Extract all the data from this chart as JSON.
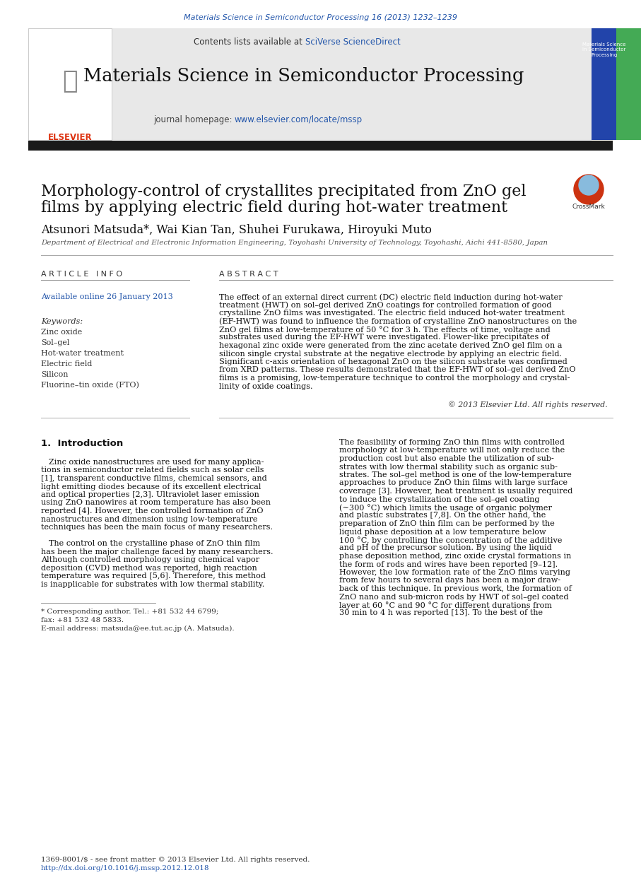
{
  "journal_ref": "Materials Science in Semiconductor Processing 16 (2013) 1232–1239",
  "sciverse_text": "SciVerse ScienceDirect",
  "journal_title": "Materials Science in Semiconductor Processing",
  "journal_homepage_url": "www.elsevier.com/locate/mssp",
  "article_title_line1": "Morphology-control of crystallites precipitated from ZnO gel",
  "article_title_line2": "films by applying electric field during hot-water treatment",
  "authors": "Atsunori Matsuda*, Wai Kian Tan, Shuhei Furukawa, Hiroyuki Muto",
  "affiliation": "Department of Electrical and Electronic Information Engineering, Toyohashi University of Technology, Toyohashi, Aichi 441-8580, Japan",
  "article_info_header": "A R T I C L E   I N F O",
  "abstract_header": "A B S T R A C T",
  "available_online": "Available online 26 January 2013",
  "keywords_label": "Keywords:",
  "keywords": [
    "Zinc oxide",
    "Sol–gel",
    "Hot-water treatment",
    "Electric field",
    "Silicon",
    "Fluorine–tin oxide (FTO)"
  ],
  "abstract_lines": [
    "The effect of an external direct current (DC) electric field induction during hot-water",
    "treatment (HWT) on sol–gel derived ZnO coatings for controlled formation of good",
    "crystalline ZnO films was investigated. The electric field induced hot-water treatment",
    "(EF-HWT) was found to influence the formation of crystalline ZnO nanostructures on the",
    "ZnO gel films at low-temperature of 50 °C for 3 h. The effects of time, voltage and",
    "substrates used during the EF-HWT were investigated. Flower-like precipitates of",
    "hexagonal zinc oxide were generated from the zinc acetate derived ZnO gel film on a",
    "silicon single crystal substrate at the negative electrode by applying an electric field.",
    "Significant c-axis orientation of hexagonal ZnO on the silicon substrate was confirmed",
    "from XRD patterns. These results demonstrated that the EF-HWT of sol–gel derived ZnO",
    "films is a promising, low-temperature technique to control the morphology and crystal-",
    "linity of oxide coatings."
  ],
  "copyright_text": "© 2013 Elsevier Ltd. All rights reserved.",
  "section1_title": "1.  Introduction",
  "intro_col1_lines": [
    "   Zinc oxide nanostructures are used for many applica-",
    "tions in semiconductor related fields such as solar cells",
    "[1], transparent conductive films, chemical sensors, and",
    "light emitting diodes because of its excellent electrical",
    "and optical properties [2,3]. Ultraviolet laser emission",
    "using ZnO nanowires at room temperature has also been",
    "reported [4]. However, the controlled formation of ZnO",
    "nanostructures and dimension using low-temperature",
    "techniques has been the main focus of many researchers.",
    "",
    "   The control on the crystalline phase of ZnO thin film",
    "has been the major challenge faced by many researchers.",
    "Although controlled morphology using chemical vapor",
    "deposition (CVD) method was reported, high reaction",
    "temperature was required [5,6]. Therefore, this method",
    "is inapplicable for substrates with low thermal stability."
  ],
  "intro_col2_lines": [
    "The feasibility of forming ZnO thin films with controlled",
    "morphology at low-temperature will not only reduce the",
    "production cost but also enable the utilization of sub-",
    "strates with low thermal stability such as organic sub-",
    "strates. The sol–gel method is one of the low-temperature",
    "approaches to produce ZnO thin films with large surface",
    "coverage [3]. However, heat treatment is usually required",
    "to induce the crystallization of the sol–gel coating",
    "(∼300 °C) which limits the usage of organic polymer",
    "and plastic substrates [7,8]. On the other hand, the",
    "preparation of ZnO thin film can be performed by the",
    "liquid phase deposition at a low temperature below",
    "100 °C, by controlling the concentration of the additive",
    "and pH of the precursor solution. By using the liquid",
    "phase deposition method, zinc oxide crystal formations in",
    "the form of rods and wires have been reported [9–12].",
    "However, the low formation rate of the ZnO films varying",
    "from few hours to several days has been a major draw-",
    "back of this technique. In previous work, the formation of",
    "ZnO nano and sub-micron rods by HWT of sol–gel coated",
    "layer at 60 °C and 90 °C for different durations from",
    "30 min to 4 h was reported [13]. To the best of the"
  ],
  "footnote_corresponding": "* Corresponding author. Tel.: +81 532 44 6799;",
  "footnote_fax": "fax: +81 532 48 5833.",
  "footnote_email": "E-mail address: matsuda@ee.tut.ac.jp (A. Matsuda).",
  "footer_issn": "1369-8001/$ - see front matter © 2013 Elsevier Ltd. All rights reserved.",
  "footer_doi": "http://dx.doi.org/10.1016/j.mssp.2012.12.018",
  "blue_color": "#2255aa",
  "orange_color": "#dd3311",
  "text_color": "#111111",
  "gray_color": "#555555",
  "link_color": "#2255aa",
  "header_bg": "#e8e8e8",
  "thick_bar_color": "#1a1a1a"
}
